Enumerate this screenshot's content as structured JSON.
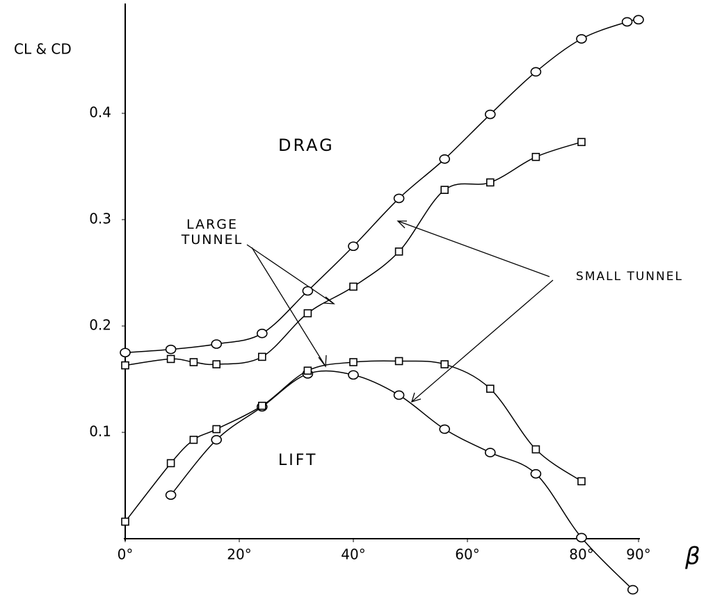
{
  "chart_data": {
    "type": "line",
    "y_label": "CL & CD",
    "x_label": "β",
    "annotations": [
      "DRAG",
      "LIFT",
      "LARGE TUNNEL",
      "SMALL TUNNEL"
    ],
    "xlim": [
      0,
      90
    ],
    "ylim": [
      -0.05,
      0.5
    ],
    "xticks": [
      {
        "value": 0,
        "label": "0°"
      },
      {
        "value": 20,
        "label": "20°"
      },
      {
        "value": 40,
        "label": "40°"
      },
      {
        "value": 60,
        "label": "60°"
      },
      {
        "value": 80,
        "label": "80°"
      },
      {
        "value": 90,
        "label": "90°"
      }
    ],
    "yticks": [
      0.1,
      0.2,
      0.3,
      0.4
    ],
    "grid": false,
    "series": [
      {
        "marker": "circle",
        "color": "#000000",
        "x": [
          0,
          8,
          16,
          24,
          32,
          40,
          48,
          56,
          64,
          72,
          80,
          88,
          90
        ],
        "values": [
          0.175,
          0.178,
          0.183,
          0.193,
          0.233,
          0.275,
          0.32,
          0.357,
          0.399,
          0.439,
          0.47,
          0.486,
          0.488
        ]
      },
      {
        "marker": "square",
        "color": "#000000",
        "x": [
          0,
          8,
          12,
          16,
          24,
          32,
          40,
          48,
          56,
          64,
          72,
          80
        ],
        "values": [
          0.163,
          0.169,
          0.166,
          0.164,
          0.171,
          0.212,
          0.237,
          0.27,
          0.328,
          0.335,
          0.359,
          0.373
        ]
      },
      {
        "marker": "circle",
        "color": "#000000",
        "x": [
          8,
          16,
          24,
          32,
          40,
          48,
          56,
          64,
          72,
          80,
          89
        ],
        "values": [
          0.041,
          0.093,
          0.124,
          0.155,
          0.154,
          0.135,
          0.103,
          0.081,
          0.061,
          0.001,
          -0.048
        ]
      },
      {
        "marker": "square",
        "color": "#000000",
        "x": [
          0,
          8,
          12,
          16,
          24,
          32,
          40,
          48,
          56,
          64,
          72,
          80
        ],
        "values": [
          0.016,
          0.071,
          0.093,
          0.103,
          0.125,
          0.158,
          0.166,
          0.167,
          0.164,
          0.141,
          0.084,
          0.054
        ]
      }
    ]
  }
}
